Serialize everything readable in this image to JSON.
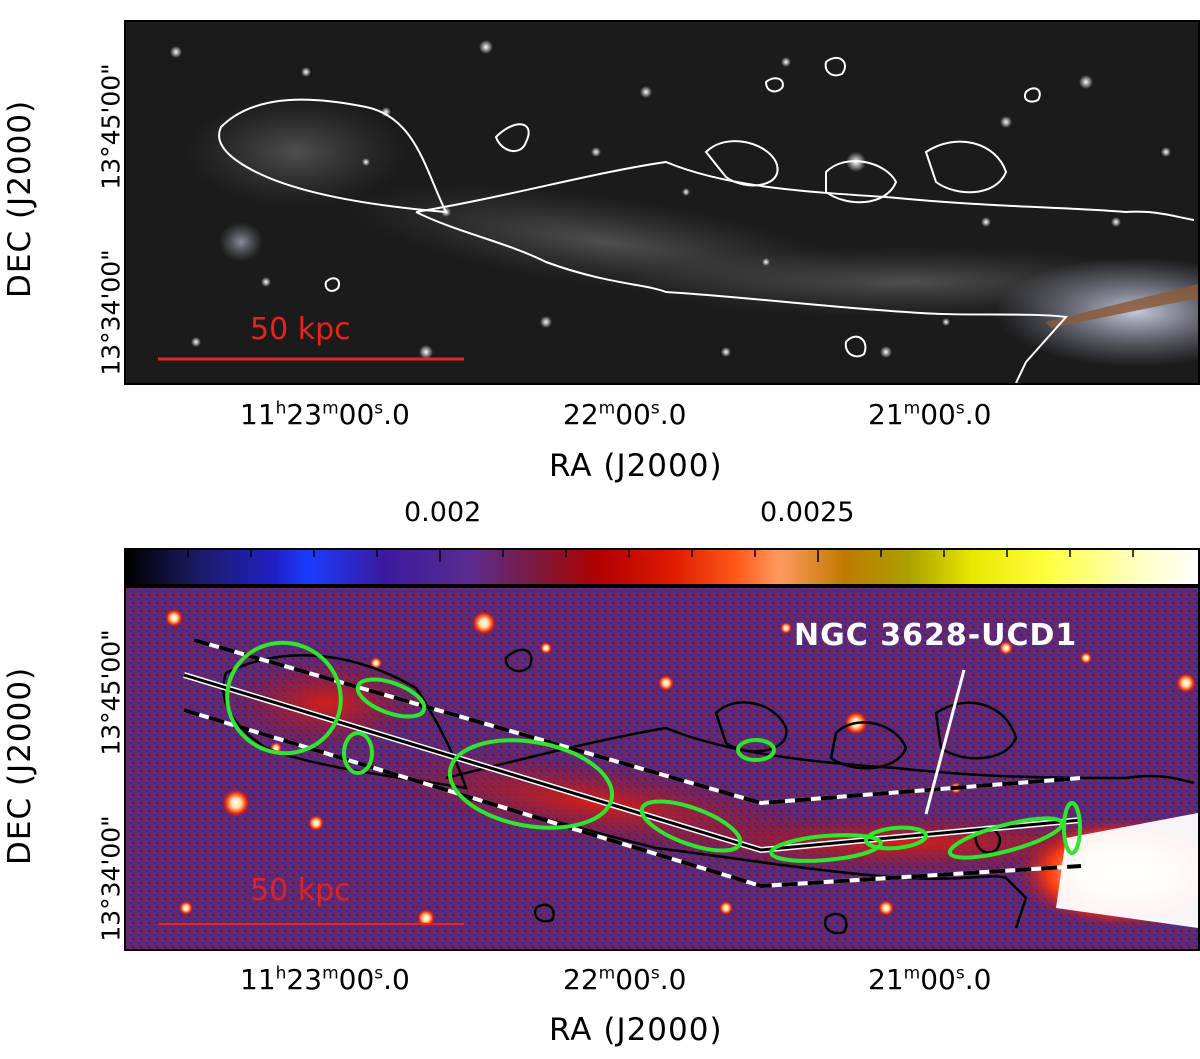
{
  "top_panel": {
    "ylabel": "DEC (J2000)",
    "yticks": [
      "13°45'00\"",
      "13°34'00\""
    ],
    "xticks": [
      {
        "h": "11",
        "hu": "h",
        "m": "23",
        "mu": "m",
        "s": "00",
        "su": "s",
        "frac": ".0"
      },
      {
        "m": "22",
        "mu": "m",
        "s": "00",
        "su": "s",
        "frac": ".0"
      },
      {
        "m": "21",
        "mu": "m",
        "s": "00",
        "su": "s",
        "frac": ".0"
      }
    ],
    "xlabel": "RA (J2000)",
    "scale_bar_label": "50 kpc"
  },
  "colorbar": {
    "ticks": [
      "0.002",
      "0.0025"
    ]
  },
  "bottom_panel": {
    "ylabel": "DEC (J2000)",
    "yticks": [
      "13°45'00\"",
      "13°34'00\""
    ],
    "xticks": [
      {
        "h": "11",
        "hu": "h",
        "m": "23",
        "mu": "m",
        "s": "00",
        "su": "s",
        "frac": ".0"
      },
      {
        "m": "22",
        "mu": "m",
        "s": "00",
        "su": "s",
        "frac": ".0"
      },
      {
        "m": "21",
        "mu": "m",
        "s": "00",
        "su": "s",
        "frac": ".0"
      }
    ],
    "xlabel": "RA (J2000)",
    "scale_bar_label": "50 kpc",
    "annotation": "NGC 3628-UCD1"
  },
  "colors": {
    "scale_bar": "#e8241c",
    "contour_top": "#ffffff",
    "contour_bottom": "#000000",
    "ellipse": "#2ee62e"
  }
}
